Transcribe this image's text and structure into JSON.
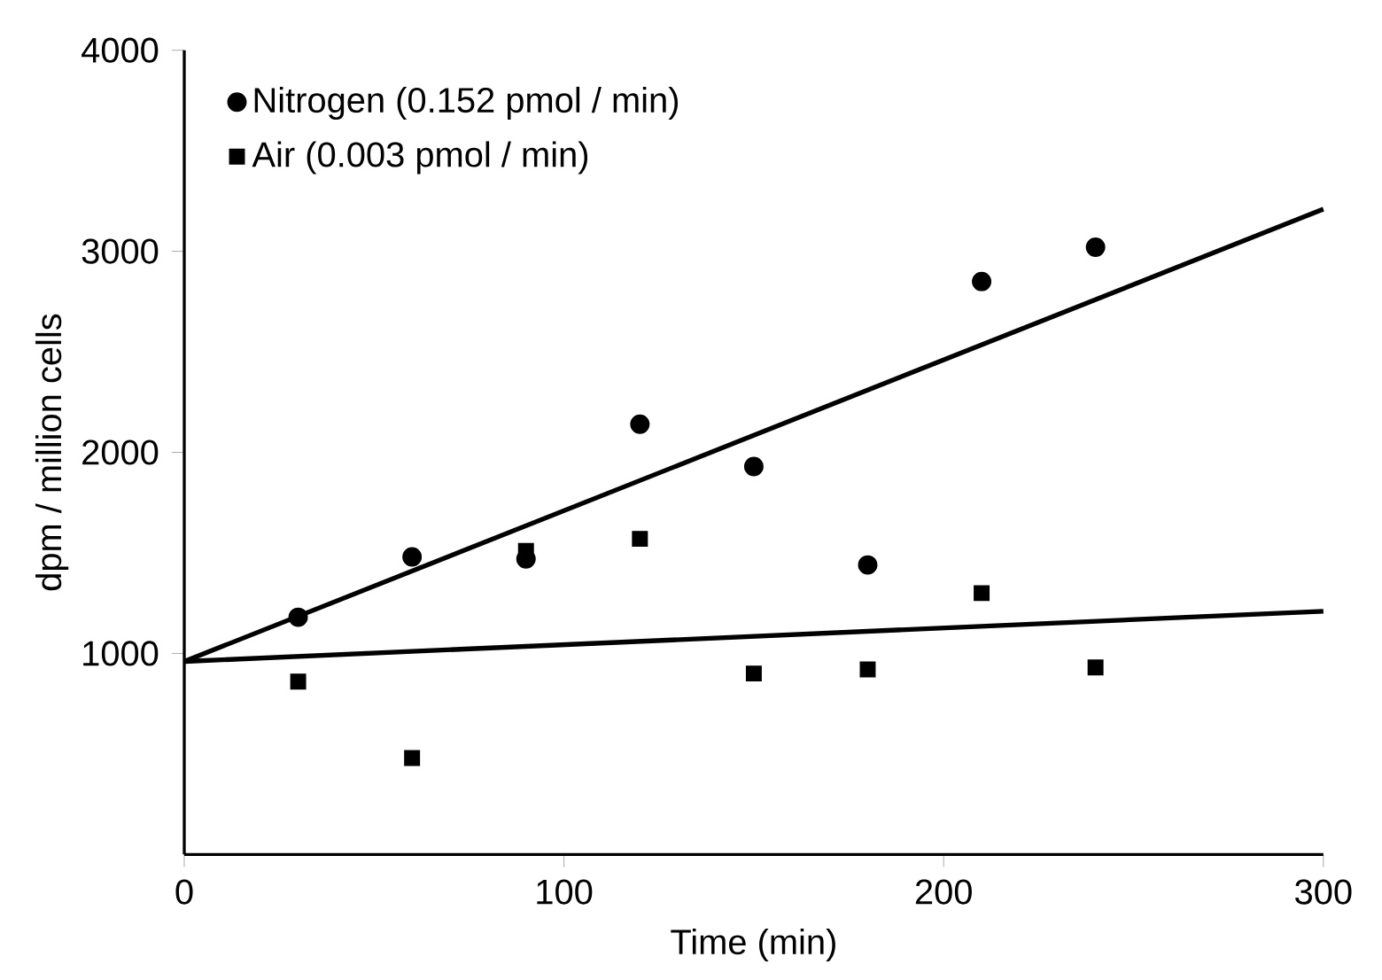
{
  "chart_data": {
    "type": "scatter",
    "xlabel": "Time (min)",
    "ylabel": "dpm / million cells",
    "xlim": [
      0,
      300
    ],
    "xticks": [
      0,
      100,
      200,
      300
    ],
    "ylim": [
      0,
      4000
    ],
    "yticks": [
      1000,
      2000,
      3000,
      4000
    ],
    "legend": "top left",
    "grid": false,
    "series": [
      {
        "name": "Nitrogen (0.152 pmol / min)",
        "color": "#000000",
        "marker": "circle",
        "x": [
          30,
          60,
          90,
          120,
          150,
          180,
          210,
          240
        ],
        "values": [
          1180,
          1480,
          1470,
          2140,
          1930,
          1440,
          2850,
          3020
        ]
      },
      {
        "name": "Air (0.003 pmol / min)",
        "color": "#000000",
        "marker": "square",
        "x": [
          30,
          60,
          90,
          120,
          150,
          180,
          210,
          240
        ],
        "values": [
          860,
          480,
          1510,
          1570,
          900,
          920,
          1300,
          930
        ]
      },
      {
        "type": "line",
        "color": "#000000",
        "marker": "none",
        "line_style": "solid",
        "x": [
          0,
          300
        ],
        "values": [
          960,
          3210
        ]
      },
      {
        "type": "line",
        "color": "#000000",
        "marker": "none",
        "line_style": "solid",
        "x": [
          0,
          300
        ],
        "values": [
          960,
          1210
        ]
      }
    ]
  }
}
